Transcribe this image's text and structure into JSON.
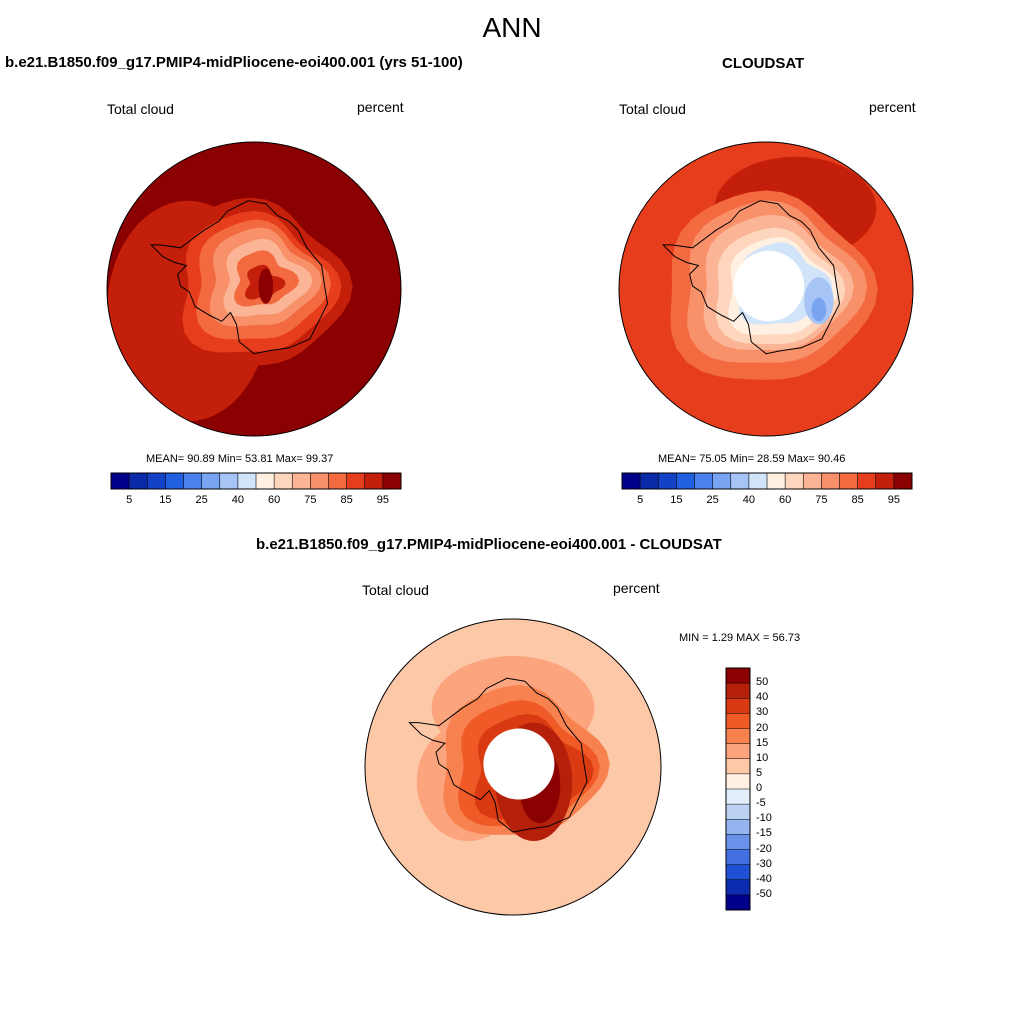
{
  "figure": {
    "title": "ANN",
    "panels": [
      {
        "title": "b.e21.B1850.f09_g17.PMIP4-midPliocene-eoi400.001 (yrs 51-100)",
        "variable": "Total cloud",
        "units": "percent",
        "stats": "MEAN=  90.89  Min=  53.81  Max=  99.37"
      },
      {
        "title": "CLOUDSAT",
        "variable": "Total cloud",
        "units": "percent",
        "stats": "MEAN=  75.05  Min=  28.59  Max=  90.46"
      },
      {
        "title": "b.e21.B1850.f09_g17.PMIP4-midPliocene-eoi400.001 - CLOUDSAT",
        "variable": "Total cloud",
        "units": "percent",
        "stats": "MIN =   1.29 MAX =  56.73"
      }
    ]
  },
  "chart_data": [
    {
      "type": "heatmap",
      "projection": "south-polar-stereographic",
      "field": "Total cloud",
      "units": "percent",
      "mean": 90.89,
      "min": 53.81,
      "max": 99.37,
      "colorbar": {
        "orientation": "horizontal",
        "levels": [
          5,
          10,
          15,
          20,
          25,
          30,
          40,
          50,
          60,
          70,
          75,
          80,
          85,
          90,
          95
        ],
        "tick_labels": [
          "5",
          "15",
          "25",
          "40",
          "60",
          "75",
          "85",
          "95"
        ],
        "colors": [
          "#00008b",
          "#0a2aa8",
          "#1442c6",
          "#2060e0",
          "#4a82ee",
          "#79a4f2",
          "#a6c4f5",
          "#d2e4fa",
          "#fff0e2",
          "#fdd6bd",
          "#fbb596",
          "#f8906a",
          "#f36a40",
          "#e63e1c",
          "#c41f0a",
          "#8b0000"
        ]
      }
    },
    {
      "type": "heatmap",
      "projection": "south-polar-stereographic",
      "field": "Total cloud",
      "units": "percent",
      "mean": 75.05,
      "min": 28.59,
      "max": 90.46,
      "colorbar": {
        "orientation": "horizontal",
        "levels": [
          5,
          10,
          15,
          20,
          25,
          30,
          40,
          50,
          60,
          70,
          75,
          80,
          85,
          90,
          95
        ],
        "tick_labels": [
          "5",
          "15",
          "25",
          "40",
          "60",
          "75",
          "85",
          "95"
        ],
        "colors": [
          "#00008b",
          "#0a2aa8",
          "#1442c6",
          "#2060e0",
          "#4a82ee",
          "#79a4f2",
          "#a6c4f5",
          "#d2e4fa",
          "#fff0e2",
          "#fdd6bd",
          "#fbb596",
          "#f8906a",
          "#f36a40",
          "#e63e1c",
          "#c41f0a",
          "#8b0000"
        ]
      }
    },
    {
      "type": "heatmap",
      "projection": "south-polar-stereographic",
      "field": "Total cloud",
      "units": "percent",
      "min": 1.29,
      "max": 56.73,
      "colorbar": {
        "orientation": "vertical",
        "levels": [
          -50,
          -40,
          -30,
          -20,
          -15,
          -10,
          -5,
          0,
          5,
          10,
          15,
          20,
          30,
          40,
          50
        ],
        "tick_labels": [
          "50",
          "40",
          "30",
          "20",
          "15",
          "10",
          "5",
          "0",
          "-5",
          "-10",
          "-15",
          "-20",
          "-30",
          "-40",
          "-50"
        ],
        "colors": [
          "#8b0000",
          "#b5200a",
          "#d93a12",
          "#ef5a26",
          "#f7814f",
          "#fba47d",
          "#fdc8a8",
          "#fff0e2",
          "#e4eefa",
          "#bcd2f4",
          "#93b4ef",
          "#6a92ea",
          "#4270e2",
          "#2050d4",
          "#0c2cb0",
          "#00008b"
        ]
      }
    }
  ]
}
